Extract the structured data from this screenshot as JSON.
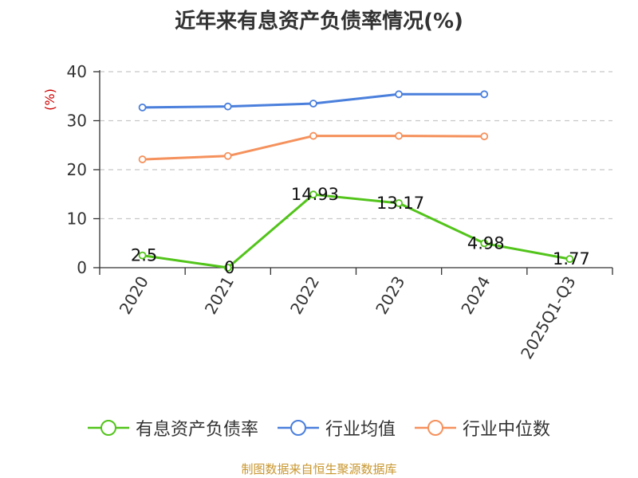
{
  "source_note": "制图数据来自恒生聚源数据库",
  "chart_data": {
    "type": "line",
    "title": "近年来有息资产负债率情况(%)",
    "ylabel": "(%)",
    "xlabel": "",
    "categories": [
      "2020",
      "2021",
      "2022",
      "2023",
      "2024",
      "2025Q1-Q3"
    ],
    "ylim": [
      0,
      40
    ],
    "yticks": [
      0,
      10,
      20,
      30,
      40
    ],
    "grid": true,
    "legend_position": "bottom",
    "series": [
      {
        "name": "有息资产负债率",
        "color": "#52c41a",
        "values": [
          2.5,
          0,
          14.93,
          13.17,
          4.98,
          1.77
        ],
        "labels": [
          "2.5",
          "0",
          "14.93",
          "13.17",
          "4.98",
          "1.77"
        ]
      },
      {
        "name": "行业均值",
        "color": "#4a7fdc",
        "values": [
          32.7,
          32.9,
          33.5,
          35.4,
          35.4,
          null
        ]
      },
      {
        "name": "行业中位数",
        "color": "#f5915c",
        "values": [
          22.1,
          22.8,
          26.9,
          26.9,
          26.8,
          null
        ]
      }
    ]
  }
}
